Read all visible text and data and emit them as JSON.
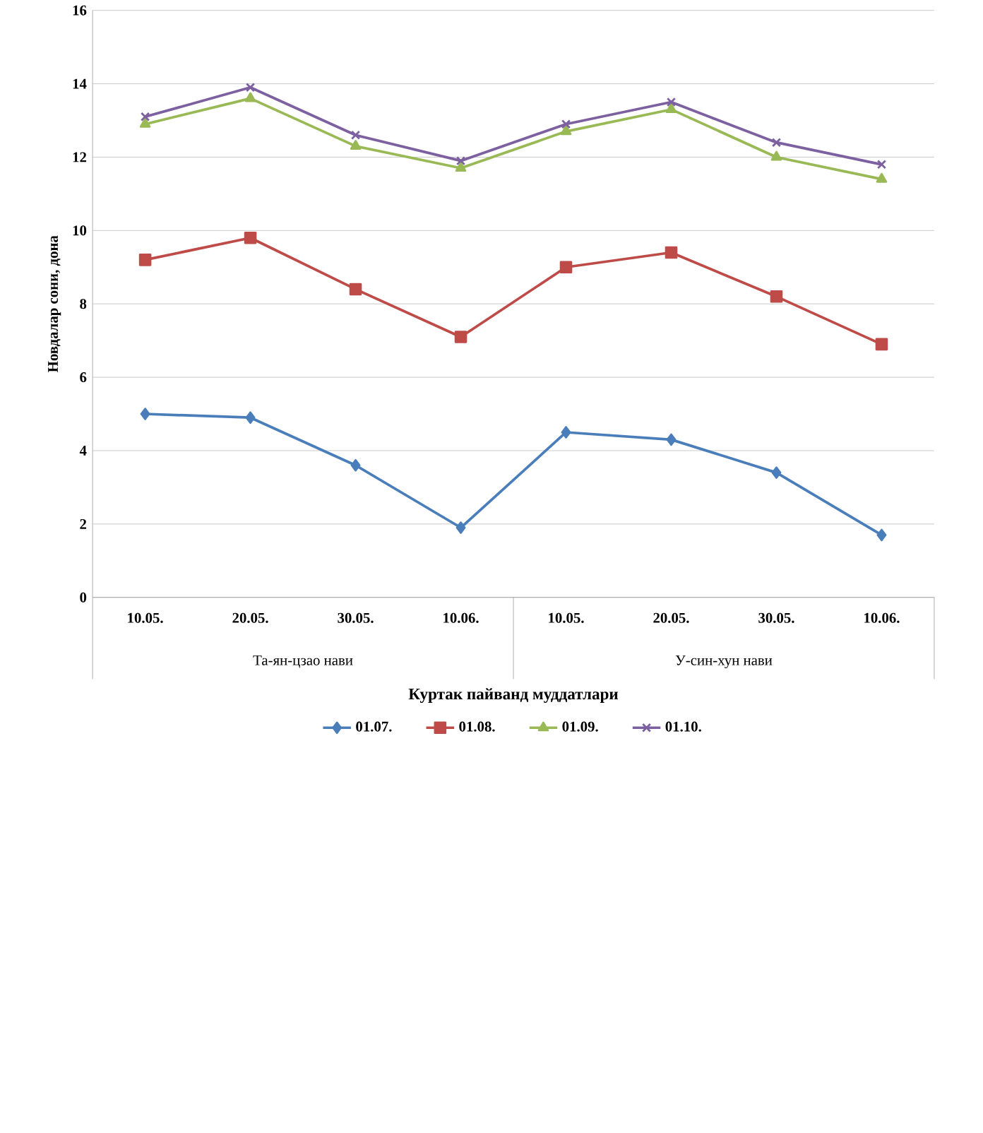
{
  "chart_data": {
    "type": "line",
    "xlabel": "Куртак пайванд муддатлари",
    "ylabel": "Новдалар сони, дона",
    "categories": [
      "10.05.",
      "20.05.",
      "30.05.",
      "10.06.",
      "10.05.",
      "20.05.",
      "30.05.",
      "10.06."
    ],
    "annotations": [
      "Та-ян-цзао нави",
      "У-син-хун нави"
    ],
    "series": [
      {
        "name": "01.07.",
        "color": "#4a7ebb",
        "marker": "diamond",
        "values": [
          5.0,
          4.9,
          3.6,
          1.9,
          4.5,
          4.3,
          3.4,
          1.7
        ]
      },
      {
        "name": "01.08.",
        "color": "#be4b48",
        "marker": "square",
        "values": [
          9.2,
          9.8,
          8.4,
          7.1,
          9.0,
          9.4,
          8.2,
          6.9
        ]
      },
      {
        "name": "01.09.",
        "color": "#98b954",
        "marker": "triangle",
        "values": [
          12.9,
          13.6,
          12.3,
          11.7,
          12.7,
          13.3,
          12.0,
          11.4
        ]
      },
      {
        "name": "01.10.",
        "color": "#7d60a0",
        "marker": "cross",
        "values": [
          13.1,
          13.9,
          12.6,
          11.9,
          12.9,
          13.5,
          12.4,
          11.8
        ]
      }
    ],
    "ylim": [
      0,
      16
    ],
    "yticks": [
      0,
      2,
      4,
      6,
      8,
      10,
      12,
      14,
      16
    ],
    "grid": "y",
    "legend": "bottom"
  }
}
